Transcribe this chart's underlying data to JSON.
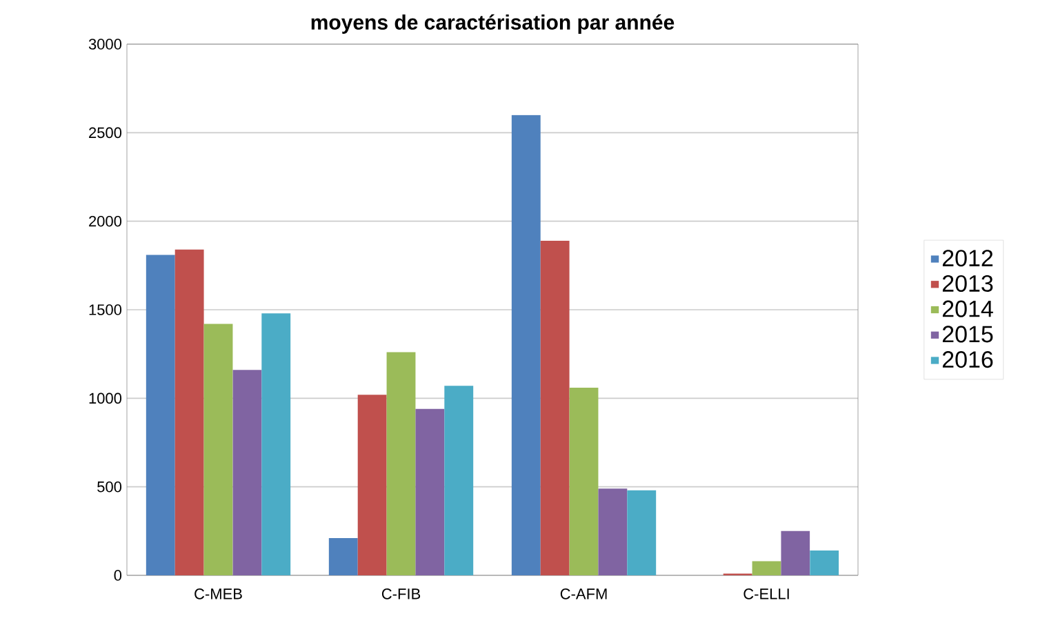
{
  "chart_data": {
    "type": "bar",
    "title": "moyens de caractérisation par année",
    "categories": [
      "C-MEB",
      "C-FIB",
      "C-AFM",
      "C-ELLI"
    ],
    "series": [
      {
        "name": "2012",
        "color": "#4f81bd",
        "values": [
          1810,
          210,
          2600,
          0
        ]
      },
      {
        "name": "2013",
        "color": "#c0504d",
        "values": [
          1840,
          1020,
          1890,
          10
        ]
      },
      {
        "name": "2014",
        "color": "#9bbb59",
        "values": [
          1420,
          1260,
          1060,
          80
        ]
      },
      {
        "name": "2015",
        "color": "#8064a2",
        "values": [
          1160,
          940,
          490,
          250
        ]
      },
      {
        "name": "2016",
        "color": "#4bacc6",
        "values": [
          1480,
          1070,
          480,
          140
        ]
      }
    ],
    "ylim": [
      0,
      3000
    ],
    "yticks": [
      0,
      500,
      1000,
      1500,
      2000,
      2500,
      3000
    ],
    "grid": "y",
    "legend": "right"
  }
}
